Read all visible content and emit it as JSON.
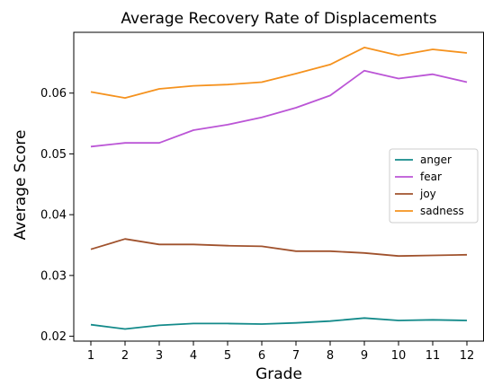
{
  "chart_data": {
    "type": "line",
    "title": "Average Recovery Rate of Displacements",
    "xlabel": "Grade",
    "ylabel": "Average Score",
    "x": [
      1,
      2,
      3,
      4,
      5,
      6,
      7,
      8,
      9,
      10,
      11,
      12
    ],
    "x_ticks": [
      "1",
      "2",
      "3",
      "4",
      "5",
      "6",
      "7",
      "8",
      "9",
      "10",
      "11",
      "12"
    ],
    "y_ticks": [
      "0.02",
      "0.03",
      "0.04",
      "0.05",
      "0.06"
    ],
    "y_tick_values": [
      0.02,
      0.03,
      0.04,
      0.05,
      0.06
    ],
    "xlim": [
      0.5,
      12.5
    ],
    "ylim": [
      0.0192,
      0.07
    ],
    "grid": false,
    "legend_position": "center-right",
    "series": [
      {
        "name": "anger",
        "color": "#138a8a",
        "values": [
          0.0219,
          0.0212,
          0.0218,
          0.0221,
          0.0221,
          0.022,
          0.0222,
          0.0225,
          0.023,
          0.0226,
          0.0227,
          0.0226
        ]
      },
      {
        "name": "fear",
        "color": "#bb55d6",
        "values": [
          0.0512,
          0.0518,
          0.0518,
          0.0539,
          0.0548,
          0.056,
          0.0576,
          0.0596,
          0.0637,
          0.0624,
          0.0631,
          0.0618
        ]
      },
      {
        "name": "joy",
        "color": "#a0522d",
        "values": [
          0.0343,
          0.036,
          0.0351,
          0.0351,
          0.0349,
          0.0348,
          0.034,
          0.034,
          0.0337,
          0.0332,
          0.0333,
          0.0334
        ]
      },
      {
        "name": "sadness",
        "color": "#f5921e",
        "values": [
          0.0602,
          0.0592,
          0.0607,
          0.0612,
          0.0614,
          0.0618,
          0.0632,
          0.0647,
          0.0675,
          0.0662,
          0.0672,
          0.0666
        ]
      }
    ]
  }
}
